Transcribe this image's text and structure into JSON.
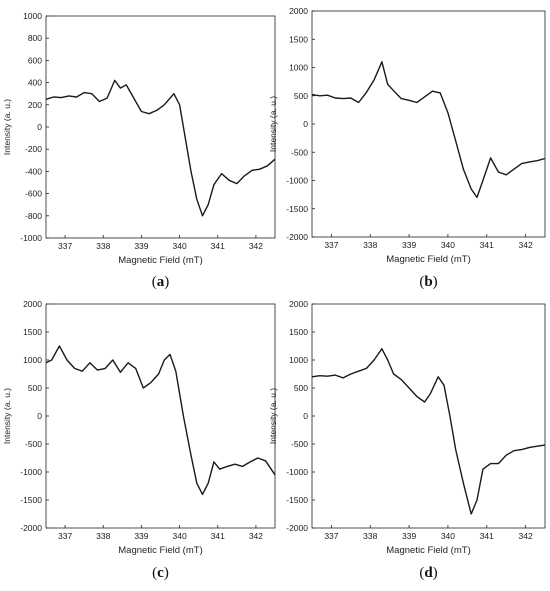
{
  "chart_data": [
    {
      "type": "line",
      "panel_label": "a",
      "xlabel": "Magnetic Field (mT)",
      "ylabel": "Intensity (a. u.)",
      "xlim": [
        336.5,
        342.5
      ],
      "ylim": [
        -1000,
        1000
      ],
      "xticks": [
        337,
        338,
        339,
        340,
        341,
        342
      ],
      "yticks": [
        -1000,
        -800,
        -600,
        -400,
        -200,
        0,
        200,
        400,
        600,
        800,
        1000
      ],
      "grid": false,
      "series": [
        {
          "x": [
            336.5,
            336.7,
            336.9,
            337.1,
            337.3,
            337.5,
            337.7,
            337.9,
            338.1,
            338.3,
            338.45,
            338.6,
            338.8,
            339.0,
            339.2,
            339.4,
            339.6,
            339.85,
            340.0,
            340.15,
            340.3,
            340.45,
            340.6,
            340.75,
            340.9,
            341.1,
            341.3,
            341.5,
            341.7,
            341.9,
            342.1,
            342.3,
            342.5
          ],
          "y": [
            250,
            270,
            265,
            280,
            270,
            310,
            300,
            230,
            260,
            420,
            350,
            380,
            260,
            140,
            120,
            150,
            200,
            300,
            200,
            -100,
            -400,
            -650,
            -800,
            -700,
            -520,
            -420,
            -480,
            -510,
            -440,
            -390,
            -380,
            -350,
            -290
          ]
        }
      ]
    },
    {
      "type": "line",
      "panel_label": "b",
      "xlabel": "Magnetic Field (mT)",
      "ylabel": "Intensity (a. u.)",
      "xlim": [
        336.5,
        342.5
      ],
      "ylim": [
        -2000,
        2000
      ],
      "xticks": [
        337,
        338,
        339,
        340,
        341,
        342
      ],
      "yticks": [
        -2000,
        -1500,
        -1000,
        -500,
        0,
        500,
        1000,
        1500,
        2000
      ],
      "grid": false,
      "series": [
        {
          "x": [
            336.5,
            336.7,
            336.9,
            337.1,
            337.3,
            337.5,
            337.7,
            337.9,
            338.1,
            338.3,
            338.45,
            338.6,
            338.8,
            339.0,
            339.2,
            339.4,
            339.6,
            339.8,
            340.0,
            340.2,
            340.4,
            340.6,
            340.75,
            340.9,
            341.1,
            341.3,
            341.5,
            341.7,
            341.9,
            342.1,
            342.3,
            342.5
          ],
          "y": [
            520,
            500,
            510,
            460,
            450,
            460,
            380,
            560,
            780,
            1100,
            700,
            590,
            450,
            420,
            380,
            480,
            580,
            550,
            200,
            -300,
            -800,
            -1150,
            -1300,
            -1000,
            -600,
            -850,
            -900,
            -800,
            -700,
            -670,
            -650,
            -610
          ]
        }
      ]
    },
    {
      "type": "line",
      "panel_label": "c",
      "xlabel": "Magnetic Field (mT)",
      "ylabel": "Intensity (a. u.)",
      "xlim": [
        336.5,
        342.5
      ],
      "ylim": [
        -2000,
        2000
      ],
      "xticks": [
        337,
        338,
        339,
        340,
        341,
        342
      ],
      "yticks": [
        -2000,
        -1500,
        -1000,
        -500,
        0,
        500,
        1000,
        1500,
        2000
      ],
      "grid": false,
      "series": [
        {
          "x": [
            336.5,
            336.65,
            336.85,
            337.05,
            337.25,
            337.45,
            337.65,
            337.85,
            338.05,
            338.25,
            338.45,
            338.65,
            338.85,
            339.05,
            339.25,
            339.45,
            339.6,
            339.75,
            339.9,
            340.1,
            340.3,
            340.45,
            340.6,
            340.75,
            340.9,
            341.05,
            341.25,
            341.45,
            341.65,
            341.85,
            342.05,
            342.25,
            342.5
          ],
          "y": [
            950,
            1000,
            1250,
            1000,
            850,
            800,
            950,
            820,
            850,
            1000,
            780,
            950,
            850,
            500,
            600,
            750,
            1000,
            1100,
            800,
            0,
            -700,
            -1200,
            -1400,
            -1200,
            -820,
            -950,
            -900,
            -860,
            -900,
            -820,
            -750,
            -800,
            -1050
          ]
        }
      ]
    },
    {
      "type": "line",
      "panel_label": "d",
      "xlabel": "Magnetic Field (mT)",
      "ylabel": "Intensity (a. u.)",
      "xlim": [
        336.5,
        342.5
      ],
      "ylim": [
        -2000,
        2000
      ],
      "xticks": [
        337,
        338,
        339,
        340,
        341,
        342
      ],
      "yticks": [
        -2000,
        -1500,
        -1000,
        -500,
        0,
        500,
        1000,
        1500,
        2000
      ],
      "grid": false,
      "series": [
        {
          "x": [
            336.5,
            336.7,
            336.9,
            337.1,
            337.3,
            337.5,
            337.7,
            337.9,
            338.1,
            338.3,
            338.45,
            338.6,
            338.8,
            339.0,
            339.2,
            339.4,
            339.55,
            339.75,
            339.9,
            340.05,
            340.2,
            340.4,
            340.6,
            340.75,
            340.9,
            341.1,
            341.3,
            341.5,
            341.7,
            341.9,
            342.1,
            342.3,
            342.5
          ],
          "y": [
            700,
            720,
            710,
            730,
            680,
            750,
            800,
            850,
            1000,
            1200,
            1000,
            750,
            650,
            500,
            350,
            250,
            400,
            700,
            550,
            0,
            -600,
            -1200,
            -1750,
            -1500,
            -950,
            -850,
            -850,
            -700,
            -620,
            -600,
            -560,
            -540,
            -520
          ]
        }
      ]
    }
  ]
}
